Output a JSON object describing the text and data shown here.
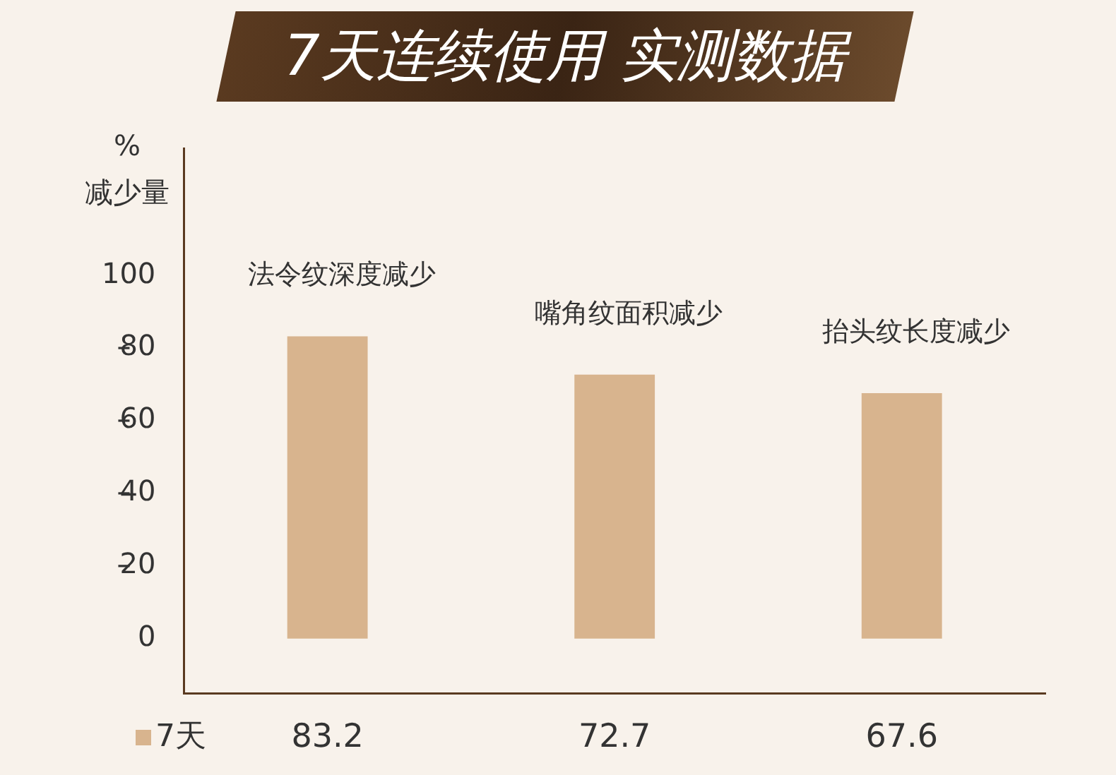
{
  "chart_data": {
    "type": "bar",
    "title": "7天连续使用 实测数据",
    "ylabel": "%\n减少量",
    "categories": [
      "法令纹深度减少",
      "嘴角纹面积减少",
      "抬头纹长度减少"
    ],
    "series": [
      {
        "name": "7天",
        "color": "#d8b48e",
        "values": [
          83.2,
          72.7,
          67.6
        ]
      }
    ],
    "ylim": [
      -15,
      135
    ],
    "yticks": [
      0,
      20,
      40,
      60,
      80,
      100
    ],
    "data_labels": true,
    "legend": "bottom left",
    "grid": false
  }
}
